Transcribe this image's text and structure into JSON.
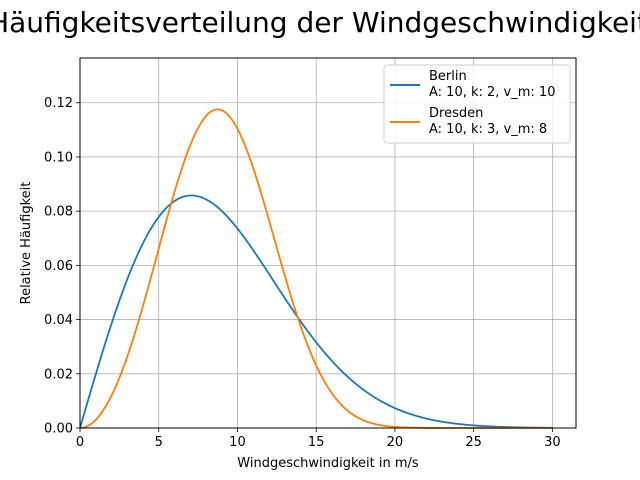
{
  "chart_data": {
    "type": "line",
    "title": "Häufigkeitsverteilung der Windgeschwindigkeit",
    "xlabel": "Windgeschwindigkeit in m/s",
    "ylabel": "Relative Häufigkeit",
    "xlim": [
      0,
      31.5
    ],
    "ylim": [
      0,
      0.1365
    ],
    "xticks": [
      0,
      5,
      10,
      15,
      20,
      25,
      30
    ],
    "yticks": [
      0.0,
      0.02,
      0.04,
      0.06,
      0.08,
      0.1,
      0.12
    ],
    "xtick_labels": [
      "0",
      "5",
      "10",
      "15",
      "20",
      "25",
      "30"
    ],
    "ytick_labels": [
      "0.00",
      "0.02",
      "0.04",
      "0.06",
      "0.08",
      "0.10",
      "0.12"
    ],
    "grid": true,
    "legend_position": "upper-right",
    "series": [
      {
        "name": "Berlin",
        "legend_line1": "Berlin",
        "legend_line2": "A: 10, k: 2, v_m: 10",
        "distribution": "weibull",
        "A": 10,
        "k": 2,
        "v_m": 10,
        "color": "#1f77b4",
        "x": [
          0,
          2,
          4,
          5,
          6,
          8,
          10,
          12,
          15,
          20,
          25,
          30
        ],
        "y": [
          0.0,
          0.0384,
          0.0681,
          0.0779,
          0.0837,
          0.0843,
          0.0736,
          0.057,
          0.0316,
          0.0073,
          0.001,
          0.0001
        ]
      },
      {
        "name": "Dresden",
        "legend_line1": "Dresden",
        "legend_line2": "A: 10, k: 3, v_m: 8",
        "distribution": "weibull",
        "A": 10,
        "k": 3,
        "v_m": 8,
        "color": "#ff7f0e",
        "x": [
          0,
          2,
          4,
          6,
          8,
          10,
          12,
          15,
          18,
          20,
          30
        ],
        "y": [
          0.0,
          0.012,
          0.0451,
          0.0871,
          0.112,
          0.1104,
          0.0733,
          0.0261,
          0.0029,
          0.0004,
          0.0
        ]
      }
    ]
  }
}
